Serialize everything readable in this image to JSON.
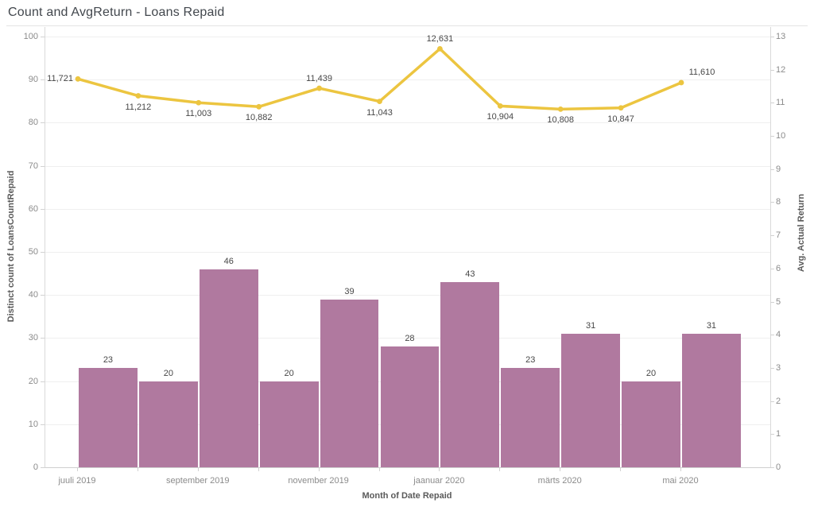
{
  "title": "Count and AvgReturn - Loans Repaid",
  "chart_data": {
    "type": "combo",
    "title": "Count and AvgReturn - Loans Repaid",
    "x_axis": {
      "title": "Month of Date Repaid",
      "n_categories": 11,
      "tick_labels": [
        "juuli 2019",
        "september 2019",
        "november 2019",
        "jaanuar 2020",
        "märts 2020",
        "mai 2020"
      ],
      "tick_indices": [
        0,
        2,
        4,
        6,
        8,
        10
      ]
    },
    "left_axis": {
      "title": "Distinct count of LoansCountRepaid",
      "min": 0,
      "max": 100,
      "tick_step": 10
    },
    "right_axis": {
      "title": "Avg. Actual Return",
      "min": 0,
      "max": 13,
      "tick_step": 1
    },
    "grid": "horizontal",
    "series": [
      {
        "name": "Distinct count of LoansCountRepaid",
        "type": "bar",
        "axis": "left",
        "color": "#b0799f",
        "values": [
          23,
          20,
          46,
          20,
          39,
          28,
          43,
          23,
          31,
          20,
          31
        ],
        "labels": [
          "23",
          "20",
          "46",
          "20",
          "39",
          "28",
          "43",
          "23",
          "31",
          "20",
          "31"
        ]
      },
      {
        "name": "Avg. Actual Return",
        "type": "line",
        "axis": "right",
        "color": "#ecc540",
        "values": [
          11.721,
          11.212,
          11.003,
          10.882,
          11.439,
          11.043,
          12.631,
          10.904,
          10.808,
          10.847,
          11.61
        ],
        "labels": [
          "11,721",
          "11,212",
          "11,003",
          "10,882",
          "11,439",
          "11,043",
          "12,631",
          "10,904",
          "10,808",
          "10,847",
          "11,610"
        ],
        "label_placement": [
          "left",
          "below",
          "below",
          "below",
          "above",
          "below",
          "above",
          "below",
          "below",
          "below",
          "above-right"
        ]
      }
    ]
  },
  "colors": {
    "bar": "#b0799f",
    "line": "#ecc540",
    "gridline": "#efefef",
    "axis_line": "#d9d9d9",
    "tick_text": "#8b8b8b",
    "data_label_text": "#474747",
    "title_text": "#42474d"
  }
}
